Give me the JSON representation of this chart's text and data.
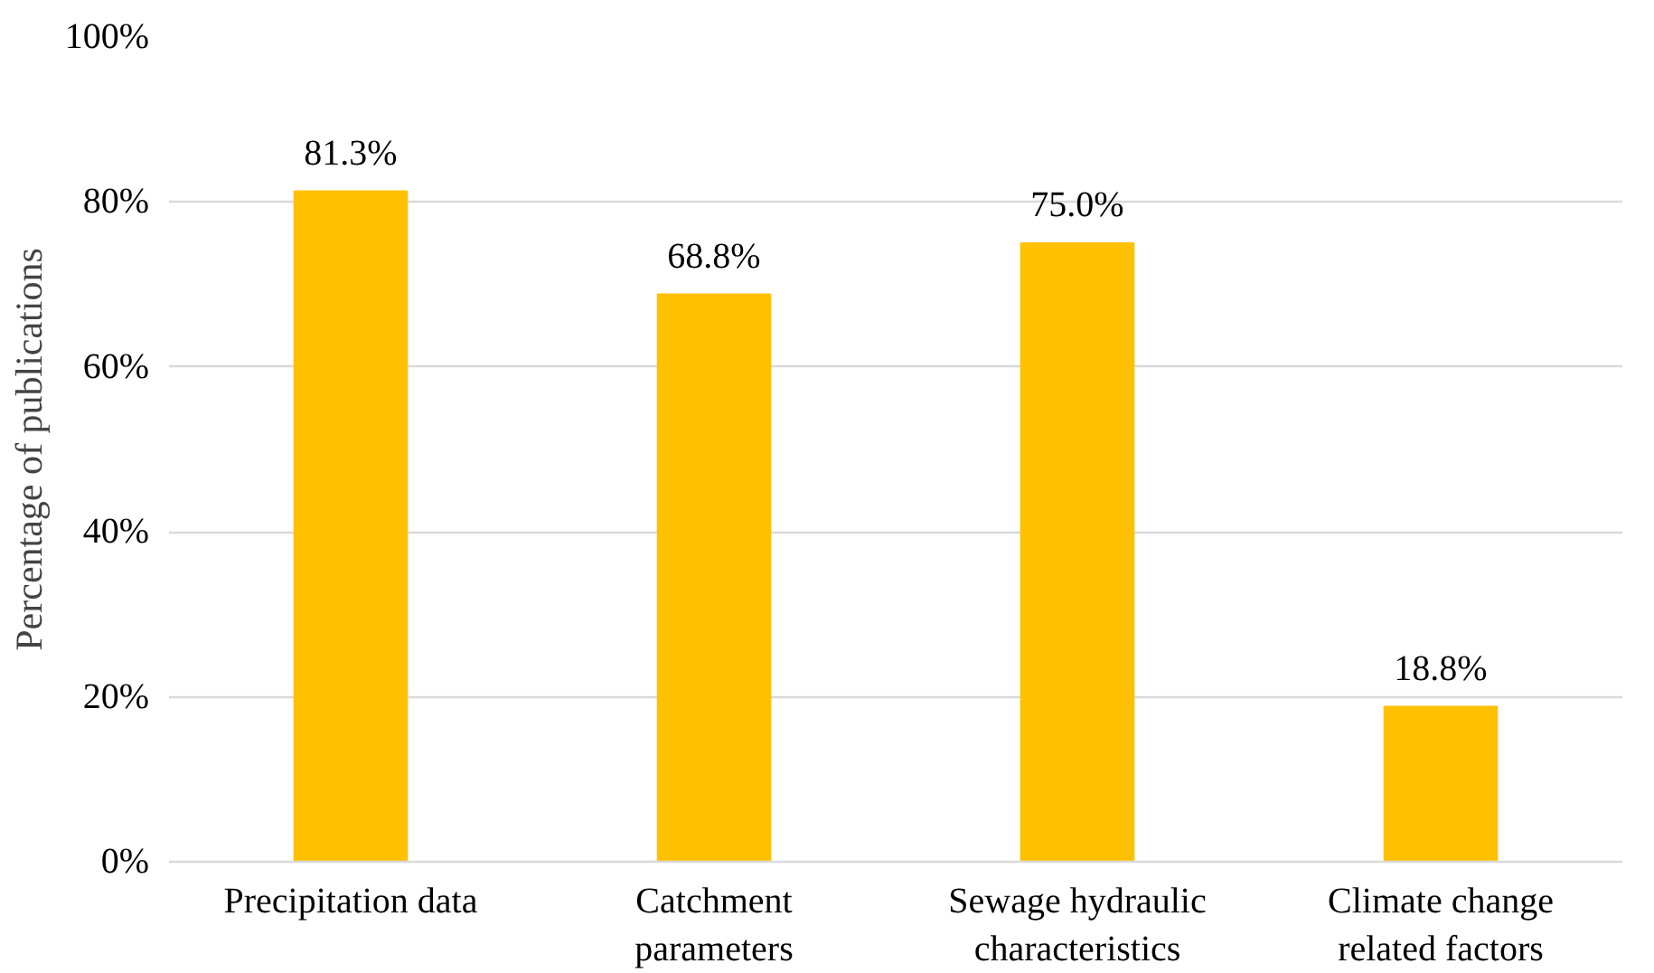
{
  "chart_data": {
    "type": "bar",
    "ylabel": "Percentage of publications",
    "categories": [
      "Precipitation data",
      "Catchment\nparameters",
      "Sewage hydraulic\ncharacteristics",
      "Climate change\nrelated factors"
    ],
    "values": [
      81.3,
      68.8,
      75.0,
      18.8
    ],
    "value_labels": [
      "81.3%",
      "68.8%",
      "75.0%",
      "18.8%"
    ],
    "color": "#ffc000",
    "ylim": [
      0,
      100
    ],
    "yticks": [
      {
        "value": 0,
        "label": "0%"
      },
      {
        "value": 20,
        "label": "20%"
      },
      {
        "value": 40,
        "label": "40%"
      },
      {
        "value": 60,
        "label": "60%"
      },
      {
        "value": 80,
        "label": "80%"
      },
      {
        "value": 100,
        "label": "100%"
      }
    ],
    "grid": "y"
  }
}
